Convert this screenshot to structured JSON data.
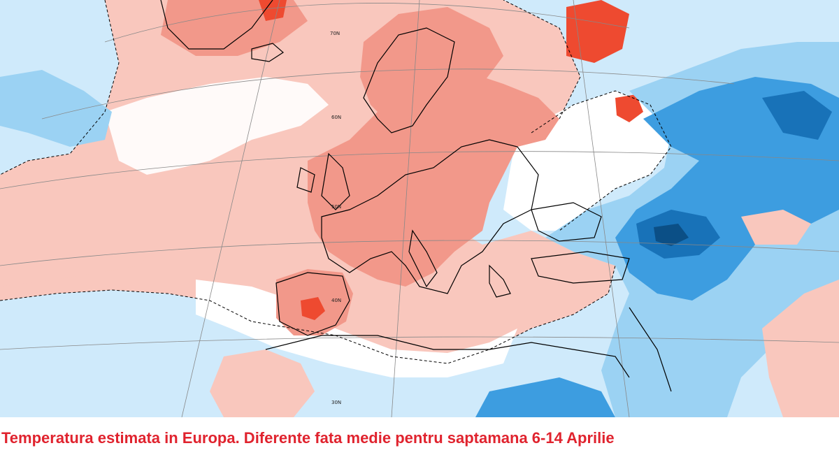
{
  "caption": {
    "text": "Temperatura estimata in Europa. Diferente fata medie pentru saptamana 6-14 Aprilie",
    "color": "#e0232e"
  },
  "map": {
    "projection": "polar stereographic",
    "variable": "temperature anomaly vs weekly average",
    "latitude_labels": [
      "70N",
      "60N",
      "50N",
      "40N",
      "30N"
    ],
    "palette": {
      "strong_warm": "#ee4a30",
      "warm": "#f2988a",
      "light_warm": "#f9c7bd",
      "neutral": "#ffffff",
      "light_cool": "#cfeafb",
      "cool": "#9bd2f3",
      "strong_cool": "#3d9de0",
      "very_cool": "#1872b8",
      "extreme_cool": "#0b4f86",
      "coastline": "#000000",
      "graticule": "#888888"
    }
  }
}
